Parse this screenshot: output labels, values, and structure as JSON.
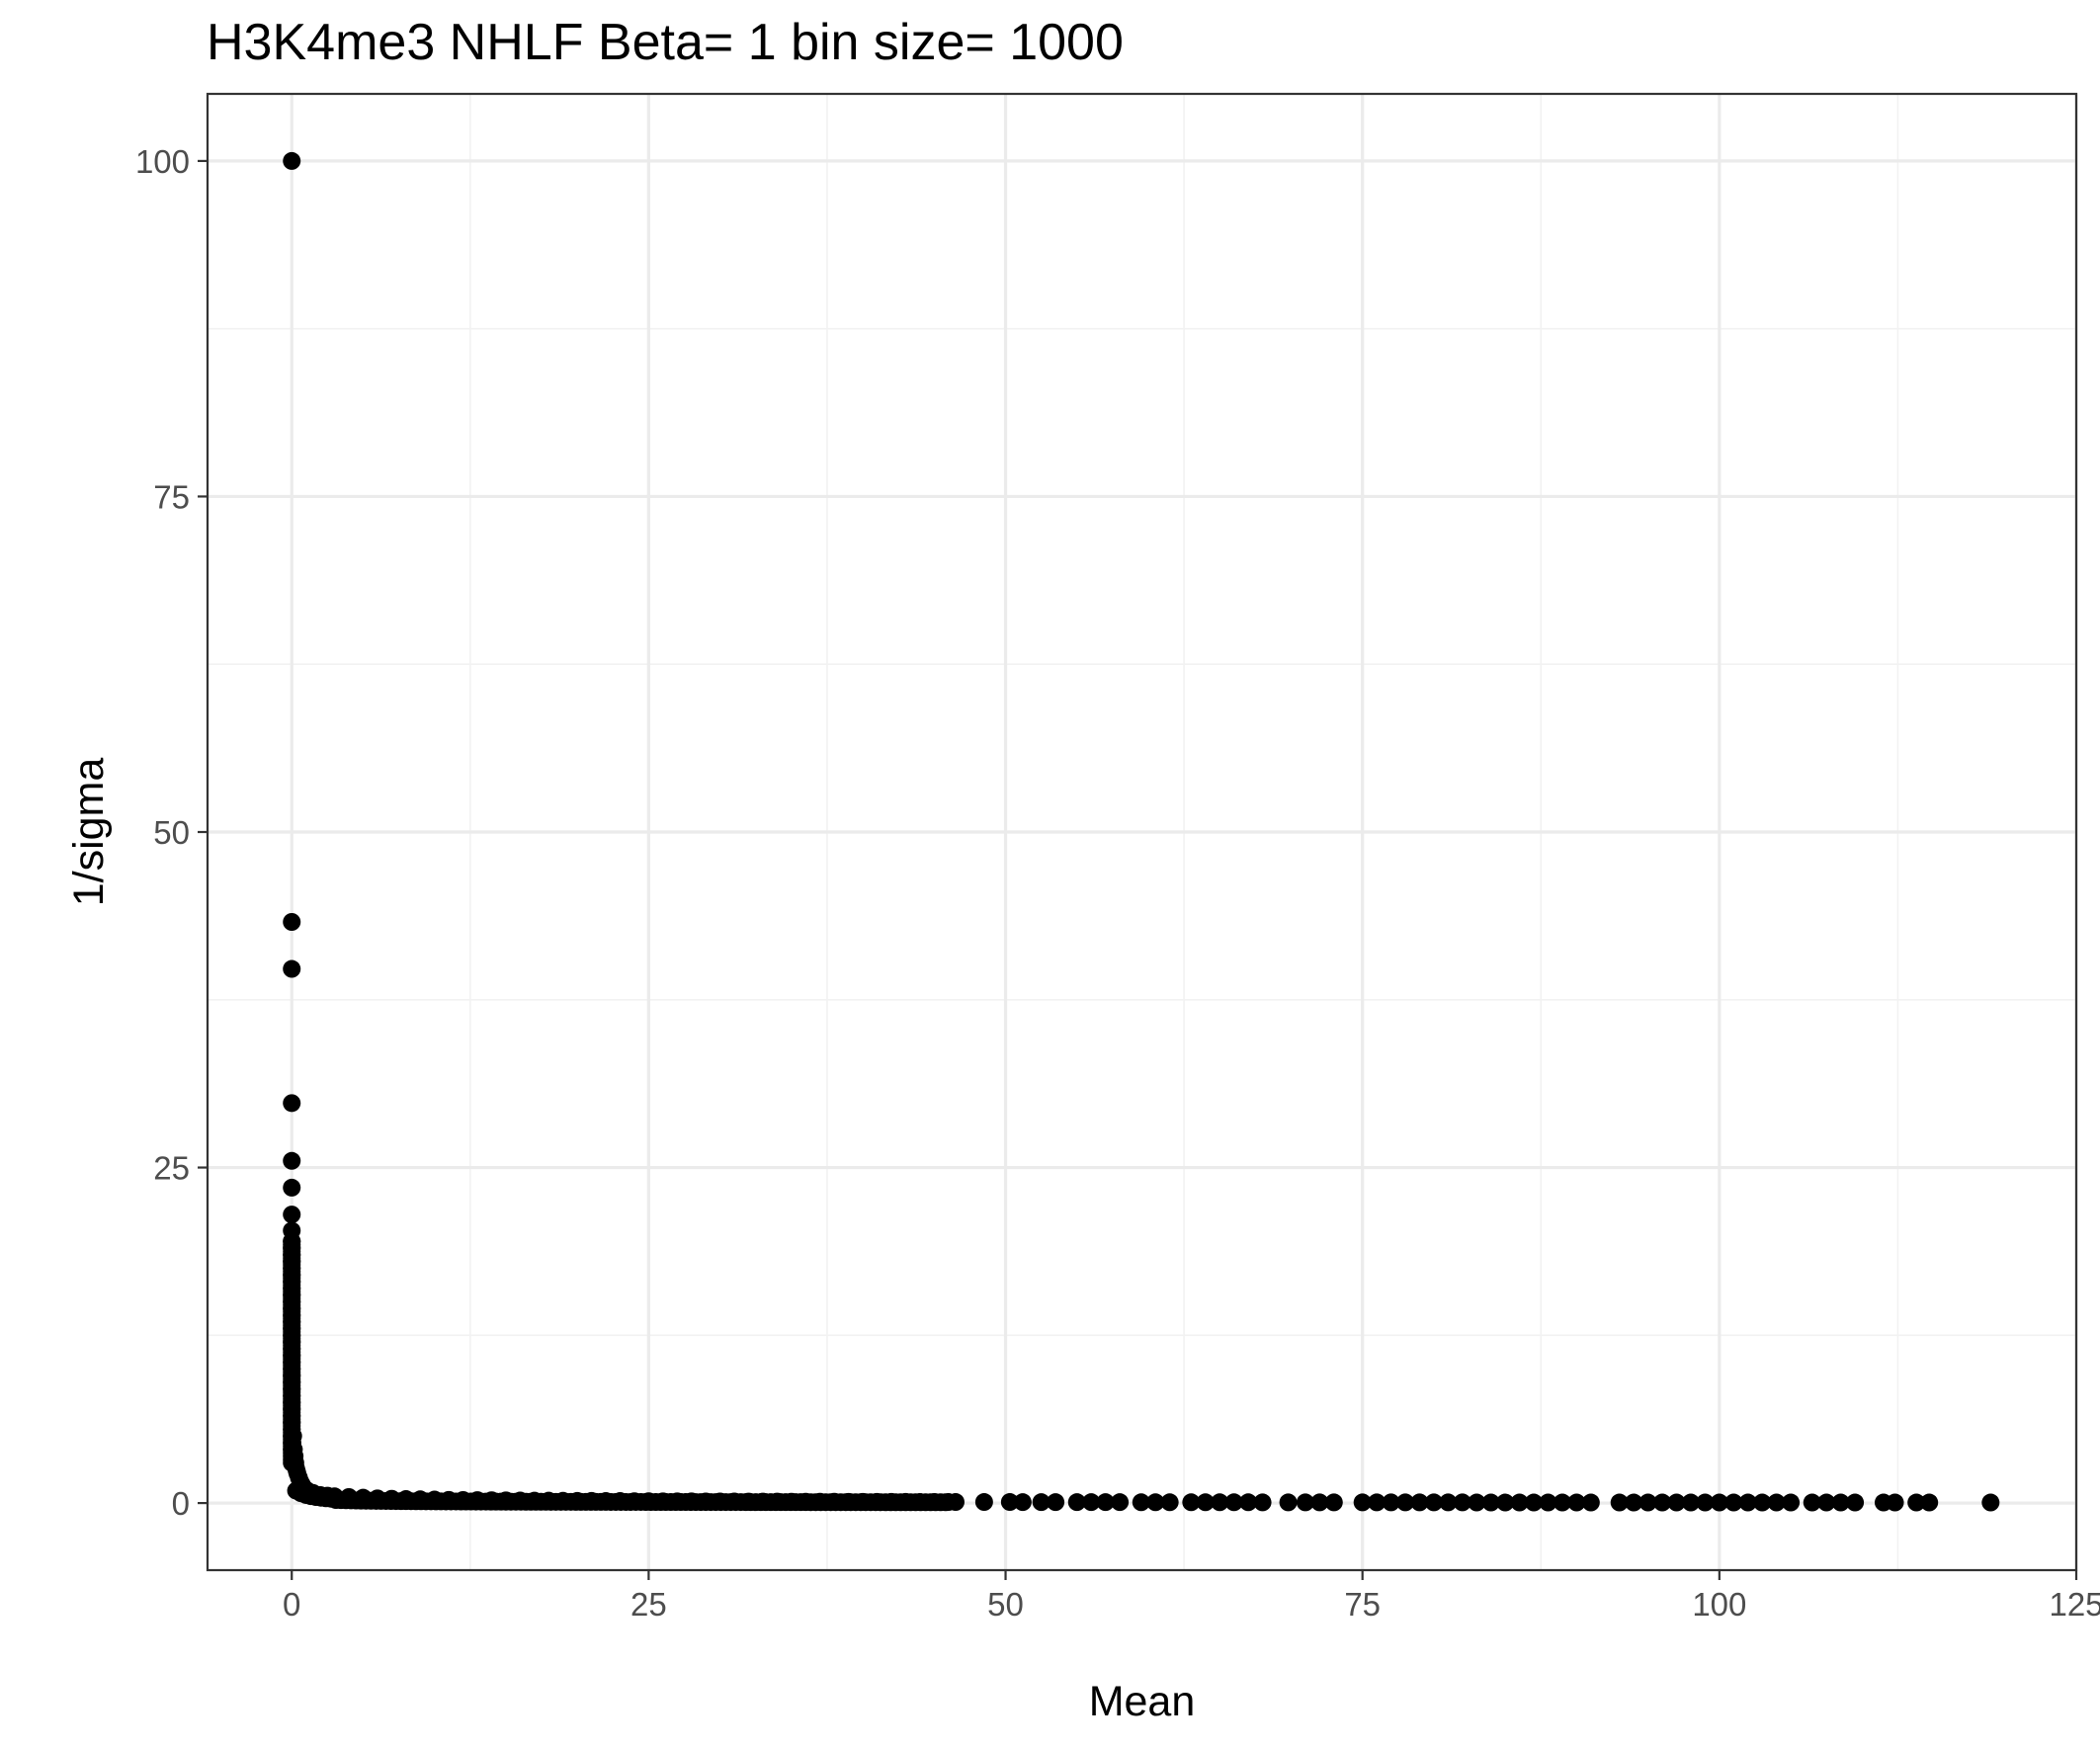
{
  "chart_data": {
    "type": "scatter",
    "title": "H3K4me3 NHLF  Beta=  1  bin size=  1000",
    "xlabel": "Mean",
    "ylabel": "1/sigma",
    "xlim": [
      -5.9,
      125
    ],
    "ylim": [
      -5,
      105
    ],
    "x_ticks": [
      0,
      25,
      50,
      75,
      100,
      125
    ],
    "x_tick_labels": [
      "0",
      "25",
      "50",
      "75",
      "100",
      "125"
    ],
    "y_ticks": [
      0,
      25,
      50,
      75,
      100
    ],
    "y_tick_labels": [
      "0",
      "25",
      "50",
      "75",
      "100"
    ],
    "grid": true,
    "legend": "none",
    "point_color": "#000000",
    "series": [
      {
        "x": [
          0,
          0,
          0,
          0,
          0,
          0,
          0,
          0,
          0,
          0,
          0,
          0,
          0,
          0,
          0,
          0,
          0,
          0,
          0,
          0,
          0,
          0,
          0,
          0,
          0,
          0,
          0,
          0,
          0,
          0,
          0,
          0,
          0,
          0,
          0,
          0,
          0,
          0,
          0,
          0,
          0.05,
          0.1,
          0.15,
          0.2,
          0.25,
          0.3,
          0.35,
          0.4,
          0.5,
          0.6,
          0.7,
          0.8,
          1,
          1.2,
          1.5,
          2,
          2.5,
          3,
          4,
          5,
          6,
          7,
          8,
          9,
          10,
          11,
          12,
          13,
          14,
          15,
          16,
          17,
          18,
          19,
          20,
          21,
          22,
          23,
          24,
          25,
          26,
          27,
          28,
          29,
          30,
          31,
          32,
          33,
          34,
          35,
          36,
          37,
          38,
          39,
          40,
          41,
          42,
          43,
          44,
          45,
          46,
          46.5,
          48.5,
          50.3,
          51.2,
          52.5,
          53.5,
          55,
          56,
          57,
          58,
          59.5,
          60.5,
          61.5,
          63,
          64,
          65,
          66,
          67,
          68,
          69.8,
          71,
          72,
          73,
          75,
          76,
          77,
          78,
          79,
          80,
          81,
          82,
          83,
          84,
          85,
          86,
          87,
          88,
          89,
          90,
          91,
          93,
          94,
          95,
          96,
          97,
          98,
          99,
          100,
          101,
          102,
          103,
          104,
          105,
          106.5,
          107.5,
          108.5,
          109.5,
          111.5,
          112.3,
          113.8,
          114.7,
          119
        ],
        "y": [
          100,
          43.3,
          39.8,
          29.8,
          25.5,
          23.5,
          21.5,
          20.3,
          19.5,
          19,
          18.5,
          18,
          17.5,
          17,
          16.5,
          16,
          15.5,
          15,
          14.5,
          14,
          13.5,
          13,
          12.5,
          12,
          11.5,
          11,
          10.5,
          10,
          9.5,
          9,
          8.5,
          8,
          7.5,
          7,
          6.5,
          6,
          5.5,
          5,
          4.5,
          4,
          4.5,
          5,
          4,
          3.5,
          3,
          2.6,
          2.4,
          2.2,
          1.9,
          1.6,
          1.4,
          1.2,
          1.0,
          0.85,
          0.75,
          0.6,
          0.55,
          0.5,
          0.45,
          0.4,
          0.35,
          0.32,
          0.3,
          0.28,
          0.26,
          0.24,
          0.23,
          0.22,
          0.21,
          0.2,
          0.19,
          0.18,
          0.18,
          0.17,
          0.16,
          0.16,
          0.15,
          0.15,
          0.14,
          0.14,
          0.13,
          0.13,
          0.13,
          0.12,
          0.12,
          0.12,
          0.11,
          0.11,
          0.11,
          0.1,
          0.1,
          0.1,
          0.1,
          0.09,
          0.09,
          0.09,
          0.09,
          0.09,
          0.08,
          0.08,
          0.08,
          0.08,
          0.08,
          0.08,
          0.07,
          0.07,
          0.07,
          0.07,
          0.07,
          0.07,
          0.07,
          0.06,
          0.06,
          0.06,
          0.06,
          0.06,
          0.06,
          0.06,
          0.06,
          0.05,
          0.05,
          0.05,
          0.05,
          0.05,
          0.05,
          0.05,
          0.05,
          0.05,
          0.05,
          0.05,
          0.05,
          0.05,
          0.04,
          0.04,
          0.04,
          0.04,
          0.04,
          0.04,
          0.04,
          0.04,
          0.04,
          0.04,
          0.04,
          0.04,
          0.04,
          0.04,
          0.04,
          0.04,
          0.04,
          0.04,
          0.04,
          0.04,
          0.04,
          0.04,
          0.04,
          0.04,
          0.04,
          0.04,
          0.04,
          0.04,
          0.04,
          0.04,
          0.04
        ]
      }
    ]
  }
}
